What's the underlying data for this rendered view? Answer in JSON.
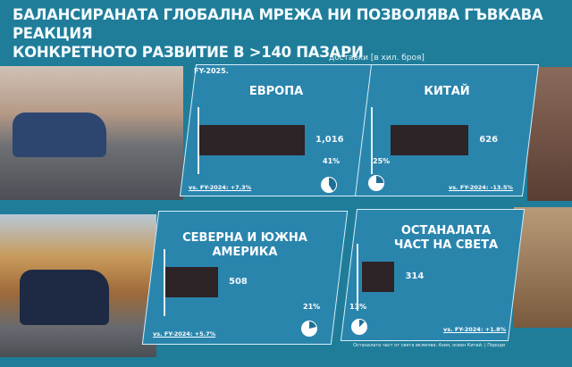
{
  "title": {
    "line1": "БАЛАНСИРАНАТА ГЛОБАЛНА МРЕЖА НИ ПОЗВОЛЯВА ГЪВКАВА РЕАКЦИЯ",
    "line2": "КОНКРЕТНОТО РАЗВИТИЕ В >140 ПАЗАРИ"
  },
  "unit_label": "доставки [в хил. броя]",
  "period": "FY-2025.",
  "footnote": "Останалата част от света включва: Азия, освен Китай. | Породи",
  "colors": {
    "background": "#1f7d9a",
    "panel": "#2a85ad",
    "bar": "#2c2426"
  },
  "chart_data": {
    "type": "bar",
    "unit": "доставки [в хил. броя]",
    "categories": [
      "ЕВРОПА",
      "КИТАЙ",
      "СЕВЕРНА И ЮЖНА АМЕРИКА",
      "ОСТАНАЛАТА ЧАСТ НА СВЕТА"
    ],
    "values": [
      1016,
      626,
      508,
      314
    ],
    "value_labels": [
      "1,016",
      "626",
      "508",
      "314"
    ],
    "shares": [
      "41%",
      "25%",
      "21%",
      "13%"
    ],
    "share_values": [
      41,
      25,
      21,
      13
    ],
    "comparisons": [
      "vs. FY-2024: +7.3%",
      "vs. FY-2024: -13.5%",
      "vs. FY-2024: +5.7%",
      "vs. FY-2024: +1.8%"
    ]
  }
}
